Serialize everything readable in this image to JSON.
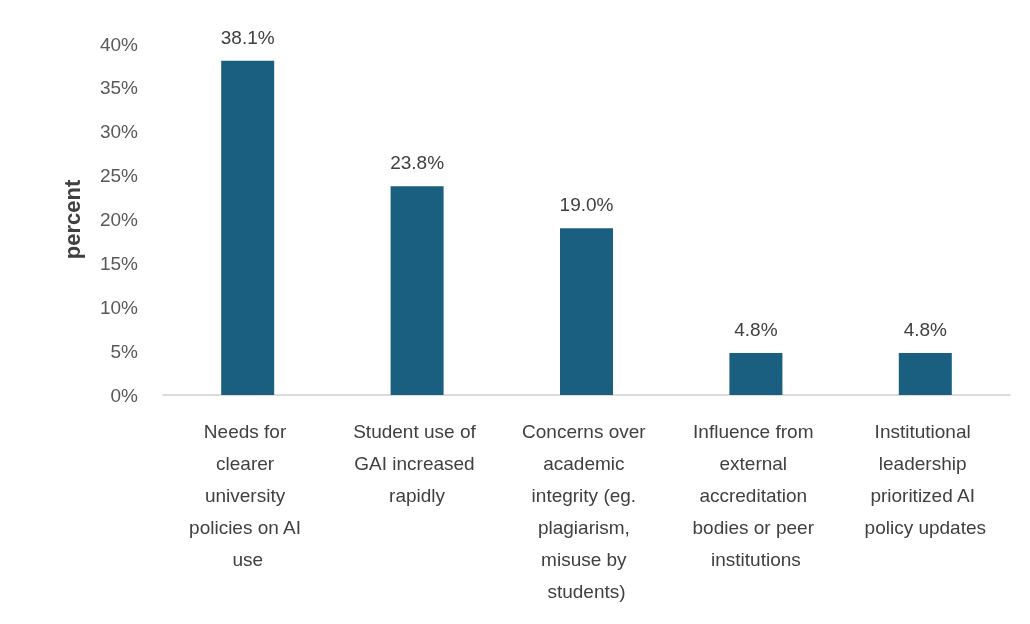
{
  "chart_data": {
    "type": "bar",
    "ylabel": "percent",
    "categories": [
      "Needs for clearer university policies on AI use",
      "Student use of GAI increased rapidly",
      "Concerns over academic integrity (eg. plagiarism, misuse by students)",
      "Influence from external accreditation bodies or peer institutions",
      "Institutional leadership prioritized AI policy updates"
    ],
    "values": [
      38.1,
      23.8,
      19.0,
      4.8,
      4.8
    ],
    "value_labels": [
      "38.1%",
      "23.8%",
      "19.0%",
      "4.8%",
      "4.8%"
    ],
    "color": "#1a5e80",
    "ylim": [
      0,
      40
    ],
    "yticks": [
      {
        "value": 0,
        "label": "0%"
      },
      {
        "value": 5,
        "label": "5%"
      },
      {
        "value": 10,
        "label": "10%"
      },
      {
        "value": 15,
        "label": "15%"
      },
      {
        "value": 20,
        "label": "20%"
      },
      {
        "value": 25,
        "label": "25%"
      },
      {
        "value": 30,
        "label": "30%"
      },
      {
        "value": 35,
        "label": "35%"
      },
      {
        "value": 40,
        "label": "40%"
      }
    ],
    "grid": false
  }
}
